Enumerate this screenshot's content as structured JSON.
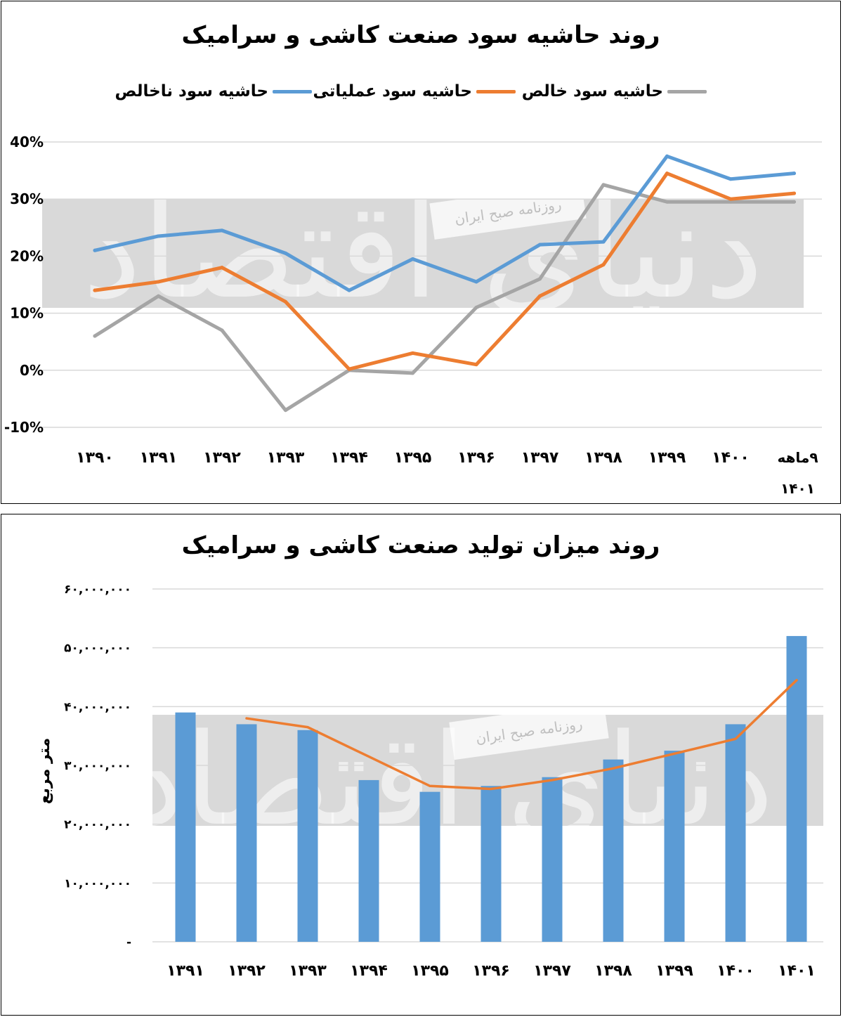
{
  "chart_data": [
    {
      "type": "line",
      "title": "روند حاشیه سود صنعت کاشی و سرامیک",
      "categories": [
        "۱۳۹۰",
        "۱۳۹۱",
        "۱۳۹۲",
        "۱۳۹۳",
        "۱۳۹۴",
        "۱۳۹۵",
        "۱۳۹۶",
        "۱۳۹۷",
        "۱۳۹۸",
        "۱۳۹۹",
        "۱۴۰۰",
        "۹ماهه ۱۴۰۱"
      ],
      "series": [
        {
          "name": "حاشیه سود ناخالص",
          "color": "#5b9bd5",
          "values": [
            21,
            23.5,
            24.5,
            20.5,
            14,
            19.5,
            15.5,
            22,
            22.5,
            37.5,
            33.5,
            34.5
          ]
        },
        {
          "name": "حاشیه سود عملیاتی",
          "color": "#ed7d31",
          "values": [
            14,
            15.5,
            18,
            12,
            0.2,
            3,
            1,
            13,
            18.5,
            34.5,
            30,
            31
          ]
        },
        {
          "name": "حاشیه سود خالص",
          "color": "#a5a5a5",
          "values": [
            6,
            13,
            7,
            -7,
            0,
            -0.5,
            11,
            16,
            32.5,
            29.5,
            29.5,
            29.5
          ]
        }
      ],
      "yticks": [
        "40%",
        "30%",
        "20%",
        "10%",
        "0%",
        "-10%"
      ],
      "ylim": [
        -10,
        40
      ],
      "grid": true,
      "legend_position": "top"
    },
    {
      "type": "bar",
      "title": "روند میزان تولید صنعت کاشی و سرامیک",
      "ylabel": "متر مربع",
      "categories": [
        "۱۳۹۱",
        "۱۳۹۲",
        "۱۳۹۳",
        "۱۳۹۴",
        "۱۳۹۵",
        "۱۳۹۶",
        "۱۳۹۷",
        "۱۳۹۸",
        "۱۳۹۹",
        "۱۴۰۰",
        "۱۴۰۱"
      ],
      "series": [
        {
          "type": "bar",
          "color": "#5b9bd5",
          "values": [
            39000000,
            37000000,
            36000000,
            27500000,
            25500000,
            26500000,
            28000000,
            31000000,
            32500000,
            37000000,
            52000000
          ]
        },
        {
          "type": "line",
          "color": "#ed7d31",
          "values": [
            null,
            38000000,
            36500000,
            31500000,
            26500000,
            26000000,
            27500000,
            29500000,
            32000000,
            34500000,
            44500000
          ]
        }
      ],
      "yticks": [
        "۶۰,۰۰۰,۰۰۰",
        "۵۰,۰۰۰,۰۰۰",
        "۴۰,۰۰۰,۰۰۰",
        "۳۰,۰۰۰,۰۰۰",
        "۲۰,۰۰۰,۰۰۰",
        "۱۰,۰۰۰,۰۰۰",
        "-"
      ],
      "ylim": [
        0,
        60000000
      ],
      "grid": true
    }
  ],
  "watermark": {
    "logo_text": "دنیای اقتصاد",
    "caption": "روزنامه صبح ایران"
  }
}
